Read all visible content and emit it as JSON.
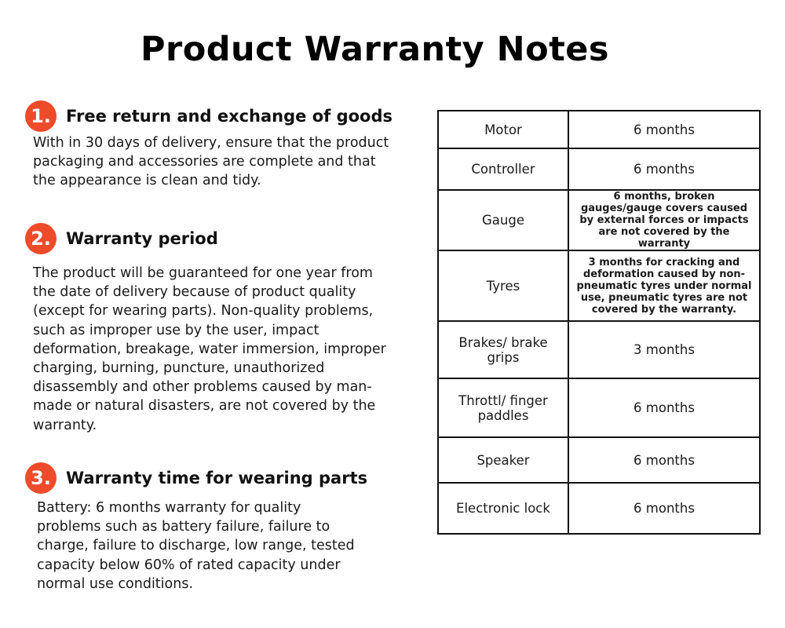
{
  "title": "Product Warranty Notes",
  "sections": [
    {
      "number": "1.",
      "heading": "Free return and exchange of goods",
      "body": "With in 30 days of delivery, ensure that the product packaging and accessories are complete and that the appearance is clean and tidy."
    },
    {
      "number": "2.",
      "heading": "Warranty period",
      "body": "The product will be guaranteed for one year from the date of delivery because of product quality (except for wearing parts). Non-quality problems, such as improper use by the user, impact deformation, breakage, water immersion, improper charging, burning, puncture, unauthorized disassembly and other problems caused by man-made or natural disasters, are not covered by the warranty."
    },
    {
      "number": "3.",
      "heading": "Warranty time for wearing parts",
      "body": "Battery: 6 months warranty for quality problems such as battery failure, failure to charge, failure to discharge, low range, tested capacity below 60% of rated capacity under normal use conditions."
    }
  ],
  "table": [
    {
      "part": "Motor",
      "warranty": "6 months"
    },
    {
      "part": "Controller",
      "warranty": "6 months"
    },
    {
      "part": "Gauge",
      "warranty": "6 months, broken gauges/gauge covers caused by external forces or impacts are not covered by the warranty"
    },
    {
      "part": "Tyres",
      "warranty": "3 months for cracking and deformation caused by non-pneumatic tyres under normal use, pneumatic tyres are not covered by the warranty."
    },
    {
      "part": "Brakes/ brake grips",
      "warranty": "3 months"
    },
    {
      "part": "Throttl/ finger paddles",
      "warranty": "6 months"
    },
    {
      "part": "Speaker",
      "warranty": "6 months"
    },
    {
      "part": "Electronic lock",
      "warranty": "6 months"
    }
  ],
  "colors": {
    "accent": "#ee4b2b",
    "border": "#111111"
  }
}
